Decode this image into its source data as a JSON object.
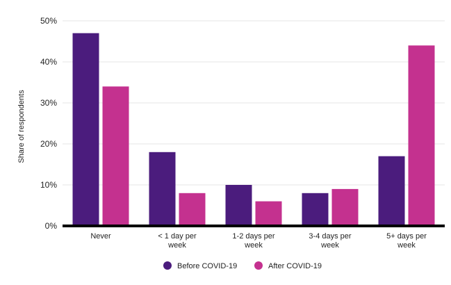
{
  "chart_data": {
    "type": "bar",
    "categories": [
      "Never",
      "< 1 day per week",
      "1-2 days per week",
      "3-4 days per week",
      "5+ days per week"
    ],
    "category_lines": [
      [
        "Never"
      ],
      [
        "< 1 day per",
        "week"
      ],
      [
        "1-2 days per",
        "week"
      ],
      [
        "3-4 days per",
        "week"
      ],
      [
        "5+ days per",
        "week"
      ]
    ],
    "series": [
      {
        "name": "Before COVID-19",
        "color": "#4b1c7d",
        "values": [
          47,
          18,
          10,
          8,
          17
        ]
      },
      {
        "name": "After COVID-19",
        "color": "#c4318f",
        "values": [
          34,
          8,
          6,
          9,
          44
        ]
      }
    ],
    "ylabel": "Share of respondents",
    "ylim": [
      0,
      50
    ],
    "yticks": [
      0,
      10,
      20,
      30,
      40,
      50
    ],
    "ytick_labels": [
      "0%",
      "10%",
      "20%",
      "30%",
      "40%",
      "50%"
    ],
    "grid": true,
    "legend_position": "bottom-center"
  }
}
